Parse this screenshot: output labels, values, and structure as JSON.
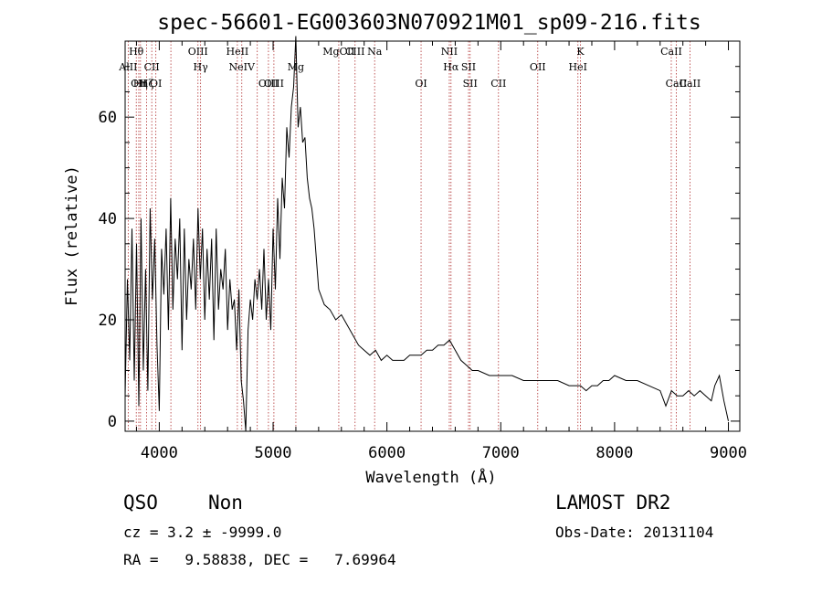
{
  "chart_data": {
    "type": "line",
    "title": "spec-56601-EG003603N070921M01_sp09-216.fits",
    "xlabel": "Wavelength (Å)",
    "ylabel": "Flux (relative)",
    "xlim": [
      3700,
      9100
    ],
    "ylim": [
      -2,
      75
    ],
    "xticks": [
      "4000",
      "5000",
      "6000",
      "7000",
      "8000",
      "9000"
    ],
    "xtick_values": [
      4000,
      5000,
      6000,
      7000,
      8000,
      9000
    ],
    "yticks": [
      "0",
      "20",
      "40",
      "60"
    ],
    "ytick_values": [
      0,
      20,
      40,
      60
    ],
    "series": [
      {
        "x": [
          3700,
          3720,
          3740,
          3760,
          3780,
          3800,
          3820,
          3840,
          3860,
          3880,
          3900,
          3920,
          3940,
          3960,
          3980,
          4000,
          4020,
          4040,
          4060,
          4080,
          4100,
          4120,
          4140,
          4160,
          4180,
          4200,
          4220,
          4240,
          4260,
          4280,
          4300,
          4320,
          4340,
          4360,
          4380,
          4400,
          4420,
          4440,
          4460,
          4480,
          4500,
          4520,
          4540,
          4560,
          4580,
          4600,
          4620,
          4640,
          4660,
          4680,
          4700,
          4720,
          4740,
          4760,
          4780,
          4800,
          4820,
          4840,
          4860,
          4880,
          4900,
          4920,
          4940,
          4960,
          4980,
          5000,
          5020,
          5040,
          5060,
          5080,
          5100,
          5120,
          5140,
          5160,
          5180,
          5200,
          5220,
          5240,
          5260,
          5280,
          5300,
          5320,
          5340,
          5360,
          5380,
          5400,
          5450,
          5500,
          5550,
          5600,
          5650,
          5700,
          5750,
          5800,
          5850,
          5900,
          5950,
          6000,
          6050,
          6100,
          6150,
          6200,
          6250,
          6300,
          6350,
          6400,
          6450,
          6500,
          6550,
          6600,
          6650,
          6700,
          6750,
          6800,
          6900,
          7000,
          7100,
          7200,
          7300,
          7400,
          7500,
          7600,
          7700,
          7750,
          7800,
          7850,
          7900,
          7950,
          8000,
          8100,
          8200,
          8300,
          8400,
          8450,
          8500,
          8550,
          8600,
          8650,
          8700,
          8750,
          8800,
          8850,
          8880,
          8920,
          8960,
          9000
        ],
        "values": [
          5,
          28,
          12,
          38,
          8,
          35,
          3,
          40,
          10,
          30,
          6,
          42,
          24,
          36,
          15,
          2,
          34,
          25,
          38,
          18,
          44,
          22,
          36,
          28,
          40,
          14,
          38,
          20,
          32,
          26,
          36,
          22,
          42,
          28,
          38,
          20,
          34,
          24,
          36,
          16,
          38,
          22,
          30,
          26,
          34,
          18,
          28,
          22,
          24,
          14,
          26,
          8,
          4,
          -2,
          18,
          24,
          20,
          28,
          24,
          30,
          22,
          34,
          20,
          28,
          18,
          38,
          26,
          44,
          32,
          48,
          42,
          58,
          52,
          62,
          66,
          76,
          58,
          62,
          55,
          56,
          48,
          44,
          42,
          38,
          32,
          26,
          23,
          22,
          20,
          21,
          19,
          17,
          15,
          14,
          13,
          14,
          12,
          13,
          12,
          12,
          12,
          13,
          13,
          13,
          14,
          14,
          15,
          15,
          16,
          14,
          12,
          11,
          10,
          10,
          9,
          9,
          9,
          8,
          8,
          8,
          8,
          7,
          7,
          6,
          7,
          7,
          8,
          8,
          9,
          8,
          8,
          7,
          6,
          3,
          6,
          5,
          5,
          6,
          5,
          6,
          5,
          4,
          7,
          9,
          4,
          0
        ],
        "color": "#000000"
      }
    ],
    "lines": [
      {
        "x": 3798,
        "label": "Hθ",
        "row": 0
      },
      {
        "x": 3727,
        "label": "AlII",
        "row": 1
      },
      {
        "x": 3820,
        "label": "OII",
        "row": 2
      },
      {
        "x": 3835,
        "label": "Hη",
        "row": 2
      },
      {
        "x": 3889,
        "label": "Hζ",
        "row": 2
      },
      {
        "x": 3934,
        "label": "CII",
        "row": 1
      },
      {
        "x": 3970,
        "label": "OI",
        "row": 2
      },
      {
        "x": 4102,
        "label": "",
        "row": 9
      },
      {
        "x": 4340,
        "label": "OIII",
        "row": 0
      },
      {
        "x": 4363,
        "label": "Hγ",
        "row": 1
      },
      {
        "x": 4686,
        "label": "HeII",
        "row": 0
      },
      {
        "x": 4725,
        "label": "NeIV",
        "row": 1
      },
      {
        "x": 4861,
        "label": "",
        "row": 9
      },
      {
        "x": 4959,
        "label": "OIII",
        "row": 2
      },
      {
        "x": 5007,
        "label": "OIII",
        "row": 2
      },
      {
        "x": 5200,
        "label": "Mg",
        "row": 1
      },
      {
        "x": 5577,
        "label": "MgCII",
        "row": 0
      },
      {
        "x": 5720,
        "label": "CIII",
        "row": 0
      },
      {
        "x": 5892,
        "label": "Na",
        "row": 0
      },
      {
        "x": 6300,
        "label": "OI",
        "row": 2
      },
      {
        "x": 6548,
        "label": "NII",
        "row": 0
      },
      {
        "x": 6563,
        "label": "Hα",
        "row": 1
      },
      {
        "x": 6717,
        "label": "SII",
        "row": 1
      },
      {
        "x": 6731,
        "label": "SII",
        "row": 2
      },
      {
        "x": 6980,
        "label": "CII",
        "row": 2
      },
      {
        "x": 7325,
        "label": "OII",
        "row": 1
      },
      {
        "x": 7678,
        "label": "HeI",
        "row": 1
      },
      {
        "x": 7700,
        "label": "K",
        "row": 0
      },
      {
        "x": 8498,
        "label": "CaII",
        "row": 0
      },
      {
        "x": 8542,
        "label": "CaII",
        "row": 2
      },
      {
        "x": 8662,
        "label": "CaII",
        "row": 2
      }
    ]
  },
  "info": {
    "class": "QSO",
    "subclass": "Non",
    "cz": "cz = 3.2 ± -9999.0",
    "radec": "RA =   9.58838, DEC =   7.69964",
    "survey": "LAMOST DR2",
    "obsdate": "Obs-Date: 20131104"
  }
}
